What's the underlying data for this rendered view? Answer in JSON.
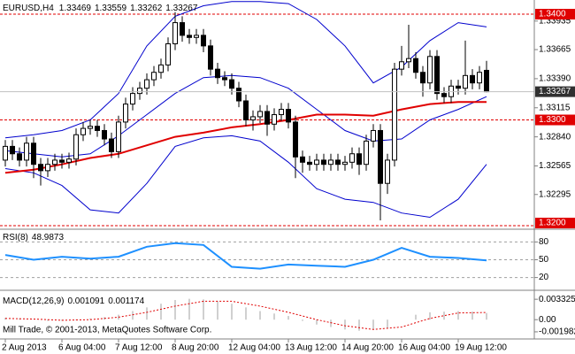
{
  "chart_data": [
    {
      "type": "candlestick",
      "title": "EURUSD,H4",
      "open": [
        1.3262,
        1.3275,
        1.3268,
        1.3262,
        1.3278,
        1.3258,
        1.3252,
        1.3258,
        1.3262,
        1.326,
        1.3263,
        1.3286,
        1.3292,
        1.3294,
        1.329,
        1.3282,
        1.327,
        1.3298,
        1.3315,
        1.3325,
        1.333,
        1.3338,
        1.3345,
        1.3352,
        1.3372,
        1.3392,
        1.338,
        1.3378,
        1.338,
        1.337,
        1.3348,
        1.334,
        1.3338,
        1.333,
        1.3318,
        1.33,
        1.3303,
        1.3308,
        1.3296,
        1.3305,
        1.331,
        1.3298,
        1.3265,
        1.326,
        1.3258,
        1.3262,
        1.3258,
        1.3262,
        1.3258,
        1.326,
        1.3268,
        1.3258,
        1.328,
        1.329,
        1.324,
        1.3262,
        1.3348,
        1.3355,
        1.3358,
        1.3345,
        1.3335,
        1.336,
        1.3325,
        1.3322,
        1.3332,
        1.333,
        1.3342,
        1.3335,
        1.33469
      ],
      "high": [
        1.3281,
        1.3281,
        1.3274,
        1.3284,
        1.3284,
        1.3264,
        1.3264,
        1.3268,
        1.3268,
        1.3269,
        1.3292,
        1.3298,
        1.33,
        1.33,
        1.3296,
        1.3288,
        1.3304,
        1.3321,
        1.3331,
        1.3336,
        1.3344,
        1.3351,
        1.3358,
        1.3378,
        1.3402,
        1.3398,
        1.3386,
        1.3386,
        1.3386,
        1.3376,
        1.3354,
        1.3346,
        1.3344,
        1.3336,
        1.3324,
        1.3309,
        1.3314,
        1.3314,
        1.3311,
        1.3316,
        1.3316,
        1.3304,
        1.3271,
        1.3266,
        1.3268,
        1.3268,
        1.3268,
        1.3268,
        1.3266,
        1.3274,
        1.3274,
        1.3286,
        1.3296,
        1.3296,
        1.3268,
        1.3354,
        1.337,
        1.339,
        1.3364,
        1.3351,
        1.3366,
        1.3366,
        1.3331,
        1.3338,
        1.3338,
        1.3375,
        1.3348,
        1.3351,
        1.33559
      ],
      "low": [
        1.3256,
        1.3262,
        1.3256,
        1.3256,
        1.3245,
        1.3238,
        1.3246,
        1.3252,
        1.3254,
        1.3254,
        1.3257,
        1.328,
        1.3286,
        1.3284,
        1.3276,
        1.3264,
        1.3264,
        1.3292,
        1.3309,
        1.3319,
        1.3324,
        1.3332,
        1.3339,
        1.3346,
        1.3366,
        1.3374,
        1.3372,
        1.3372,
        1.3364,
        1.3342,
        1.3334,
        1.3332,
        1.3324,
        1.3312,
        1.3294,
        1.329,
        1.3297,
        1.3285,
        1.329,
        1.3299,
        1.3292,
        1.3245,
        1.325,
        1.3252,
        1.3252,
        1.3252,
        1.3252,
        1.3252,
        1.3252,
        1.3254,
        1.3248,
        1.3252,
        1.3274,
        1.3205,
        1.323,
        1.3256,
        1.3342,
        1.3349,
        1.3339,
        1.3322,
        1.3329,
        1.3319,
        1.3316,
        1.3316,
        1.3324,
        1.3324,
        1.3329,
        1.3329,
        1.33262
      ],
      "close": [
        1.3275,
        1.3268,
        1.3262,
        1.3278,
        1.3258,
        1.3252,
        1.3258,
        1.3262,
        1.326,
        1.3263,
        1.3286,
        1.3292,
        1.3294,
        1.329,
        1.3282,
        1.327,
        1.3298,
        1.3315,
        1.3325,
        1.333,
        1.3338,
        1.3345,
        1.3352,
        1.3372,
        1.3392,
        1.338,
        1.3378,
        1.338,
        1.337,
        1.3348,
        1.334,
        1.3338,
        1.333,
        1.3318,
        1.33,
        1.3303,
        1.3308,
        1.3296,
        1.3305,
        1.331,
        1.3298,
        1.3265,
        1.326,
        1.3258,
        1.3262,
        1.3258,
        1.3262,
        1.3258,
        1.326,
        1.3268,
        1.3258,
        1.328,
        1.329,
        1.324,
        1.3262,
        1.3348,
        1.3355,
        1.3358,
        1.3345,
        1.3335,
        1.336,
        1.3325,
        1.3322,
        1.3332,
        1.333,
        1.3342,
        1.3335,
        1.3345,
        1.33267
      ],
      "xlim": [
        -0.75,
        74.75
      ],
      "ylim": [
        1.31975,
        1.34134
      ],
      "yticks": [
        1.33935,
        1.33665,
        {
          "value": 1.3339,
          "label": "1.33390"
        },
        1.33115,
        {
          "value": 1.3284,
          "label": "1.32840"
        },
        1.32565,
        1.32295
      ],
      "levels": [
        {
          "value": 1.34,
          "label": "1.3400"
        },
        {
          "value": 1.33,
          "label": "1.3300"
        },
        {
          "value": 1.32,
          "label": "1.3200"
        }
      ],
      "level_color": "#e00000",
      "lines": [
        {
          "color": "#0000cd",
          "width": 1,
          "x": [
            0,
            4,
            8,
            12,
            16,
            20,
            24,
            28,
            32,
            36,
            40,
            44,
            48,
            52,
            56,
            60,
            64,
            68
          ],
          "values": [
            1.3283,
            1.3286,
            1.329,
            1.33,
            1.3325,
            1.337,
            1.3398,
            1.3408,
            1.3412,
            1.3412,
            1.341,
            1.3395,
            1.337,
            1.3335,
            1.335,
            1.3375,
            1.3392,
            1.3388
          ]
        },
        {
          "color": "#0000cd",
          "width": 1,
          "x": [
            0,
            4,
            8,
            12,
            16,
            20,
            24,
            28,
            32,
            36,
            40,
            44,
            48,
            52,
            56,
            60,
            64,
            68
          ],
          "values": [
            1.3271,
            1.3268,
            1.3265,
            1.3268,
            1.3285,
            1.3305,
            1.3325,
            1.334,
            1.3342,
            1.334,
            1.333,
            1.331,
            1.329,
            1.328,
            1.3282,
            1.33,
            1.331,
            1.3322
          ]
        },
        {
          "color": "#0000cd",
          "width": 1,
          "x": [
            0,
            4,
            8,
            12,
            16,
            20,
            24,
            28,
            32,
            36,
            40,
            44,
            48,
            52,
            56,
            60,
            64,
            68
          ],
          "values": [
            1.3254,
            1.325,
            1.3238,
            1.3215,
            1.3212,
            1.324,
            1.3275,
            1.3283,
            1.3285,
            1.328,
            1.326,
            1.3235,
            1.3225,
            1.3222,
            1.3212,
            1.3208,
            1.3225,
            1.3258
          ]
        },
        {
          "color": "#e00000",
          "width": 2,
          "x": [
            0,
            4,
            8,
            12,
            16,
            20,
            24,
            28,
            32,
            36,
            40,
            44,
            48,
            52,
            56,
            60,
            64,
            68
          ],
          "values": [
            1.325,
            1.3253,
            1.3258,
            1.3264,
            1.3268,
            1.3276,
            1.3284,
            1.3288,
            1.3293,
            1.3296,
            1.33,
            1.3305,
            1.3305,
            1.3304,
            1.331,
            1.3315,
            1.3317,
            1.3317
          ]
        }
      ]
    },
    {
      "type": "line",
      "title": "RSI(8)",
      "color": "#1e90ff",
      "x": [
        0,
        4,
        8,
        12,
        16,
        20,
        24,
        28,
        32,
        36,
        40,
        44,
        48,
        52,
        56,
        60,
        64,
        68
      ],
      "values": [
        58,
        50,
        55,
        52,
        55,
        72,
        78,
        75,
        38,
        35,
        42,
        40,
        38,
        50,
        70,
        55,
        53,
        48.9873
      ],
      "xlim": [
        -0.75,
        74.75
      ],
      "ylim": [
        0,
        100
      ],
      "yticks": [
        80,
        50,
        20
      ],
      "grid": true
    },
    {
      "type": "macd",
      "title": "MACD(12,26,9)",
      "color": "#c0c0c0",
      "signal_color": "#e00000",
      "x": [
        0,
        2,
        4,
        6,
        8,
        10,
        12,
        14,
        16,
        18,
        20,
        22,
        24,
        26,
        28,
        30,
        32,
        34,
        36,
        38,
        40,
        42,
        44,
        46,
        48,
        50,
        52,
        54,
        56,
        58,
        60,
        62,
        64,
        66,
        68
      ],
      "values": [
        0.0003,
        0.0002,
        0.0,
        -0.0002,
        -0.0002,
        -0.0001,
        0.0002,
        0.0004,
        0.0008,
        0.0014,
        0.002,
        0.0026,
        0.0032,
        0.0034,
        0.0033,
        0.003,
        0.0026,
        0.002,
        0.0014,
        0.001,
        0.0006,
        -0.0002,
        -0.0008,
        -0.0012,
        -0.0016,
        -0.0018,
        -0.0016,
        -0.0014,
        0.0,
        0.0008,
        0.0012,
        0.0013,
        0.0014,
        0.0013,
        0.001091
      ],
      "signal": {
        "x": [
          0,
          4,
          8,
          12,
          16,
          20,
          24,
          28,
          32,
          36,
          40,
          44,
          48,
          52,
          56,
          60,
          64,
          68
        ],
        "values": [
          0.0002,
          0.0001,
          -0.0001,
          0.0,
          0.0004,
          0.0012,
          0.0022,
          0.003,
          0.003,
          0.0022,
          0.0012,
          0.0,
          -0.001,
          -0.0016,
          -0.0012,
          0.0002,
          0.0011,
          0.001174
        ]
      },
      "xlim": [
        -0.75,
        74.75
      ],
      "ylim": [
        -0.003,
        0.0045
      ],
      "yticks": [
        0.003325,
        {
          "value": 0,
          "label": "0.00"
        },
        -0.001982
      ],
      "xticks": [
        {
          "value": 0,
          "label": "2 Aug 2013"
        },
        {
          "value": 8,
          "label": "6 Aug 04:00"
        },
        {
          "value": 16,
          "label": "7 Aug 12:00"
        },
        {
          "value": 24,
          "label": "8 Aug 20:00"
        },
        {
          "value": 32,
          "label": "12 Aug 04:00"
        },
        {
          "value": 40,
          "label": "13 Aug 12:00"
        },
        {
          "value": 48,
          "label": "14 Aug 20:00"
        },
        {
          "value": 56,
          "label": "16 Aug 04:00"
        },
        {
          "value": 64,
          "label": "19 Aug 12:00"
        }
      ]
    }
  ],
  "footer": "Mill Trade, © 2001-2013, MetaQuotes Software Corp."
}
